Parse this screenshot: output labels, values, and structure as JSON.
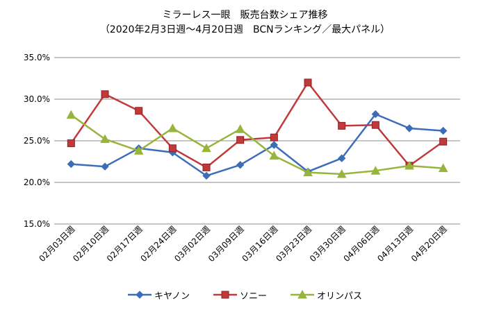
{
  "chart_data": {
    "type": "line",
    "title": "ミラーレス一眼　販売台数シェア推移",
    "subtitle": "（2020年2月3日週～4月20日週　BCNランキング／最大パネル）",
    "categories": [
      "02月03日週",
      "02月10日週",
      "02月17日週",
      "02月24日週",
      "03月02日週",
      "03月09日週",
      "03月16日週",
      "03月23日週",
      "03月30日週",
      "04月06日週",
      "04月13日週",
      "04月20日週"
    ],
    "series": [
      {
        "name": "キヤノン",
        "color": "#3b6db8",
        "marker": "diamond",
        "values": [
          22.2,
          21.9,
          24.1,
          23.6,
          20.8,
          22.1,
          24.5,
          21.3,
          22.9,
          28.2,
          26.5,
          26.2
        ]
      },
      {
        "name": "ソニー",
        "color": "#c0393b",
        "marker": "square",
        "values": [
          24.7,
          30.6,
          28.6,
          24.1,
          21.8,
          25.1,
          25.4,
          32.0,
          26.8,
          26.9,
          22.0,
          24.9
        ]
      },
      {
        "name": "オリンパス",
        "color": "#97b43b",
        "marker": "triangle",
        "values": [
          28.1,
          25.2,
          23.8,
          26.5,
          24.1,
          26.4,
          23.2,
          21.2,
          21.0,
          21.4,
          22.0,
          21.7
        ]
      }
    ],
    "ylim": [
      15,
      35
    ],
    "yticks": [
      "15.0%",
      "20.0%",
      "25.0%",
      "30.0%",
      "35.0%"
    ],
    "ytick_values": [
      15,
      20,
      25,
      30,
      35
    ],
    "grid": true,
    "legend_position": "bottom"
  }
}
